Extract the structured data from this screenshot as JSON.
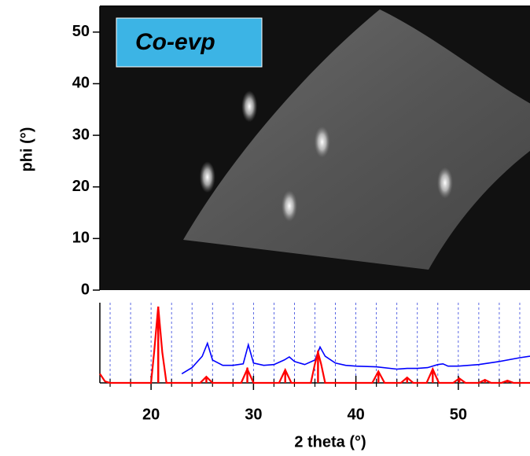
{
  "chart_data": [
    {
      "type": "scatter",
      "ylabel": "phi (°)",
      "annotation": "Co-evp",
      "xlim": [
        15,
        57
      ],
      "ylim": [
        0,
        55
      ],
      "yticks": [
        0,
        10,
        20,
        30,
        40,
        50
      ],
      "x": [
        25.5,
        29.6,
        36.7,
        33.5,
        48.7
      ],
      "values": [
        21.9,
        35.6,
        28.7,
        16.3,
        20.8
      ],
      "color": "#ffffff"
    },
    {
      "type": "line",
      "xlabel": "2 theta (°)",
      "xlim": [
        15,
        57
      ],
      "xticks": [
        20,
        30,
        40,
        50
      ],
      "xminor_ticks": [
        16,
        18,
        22,
        24,
        26,
        28,
        32,
        34,
        36,
        38,
        42,
        44,
        46,
        48,
        52,
        54,
        56
      ],
      "ylim": [
        0,
        100
      ],
      "grid": true,
      "series": [
        {
          "color": "#0000ff",
          "x": [
            23,
            24,
            25,
            25.5,
            26,
            27,
            28,
            29,
            29.5,
            30,
            31,
            32,
            33,
            33.5,
            34,
            35,
            36,
            36.5,
            37,
            38,
            39,
            40,
            42,
            44,
            45,
            46,
            47,
            48,
            48.5,
            49,
            50,
            52,
            54,
            56,
            57
          ],
          "values": [
            12,
            20,
            35,
            52,
            30,
            23,
            23,
            25,
            50,
            26,
            23,
            24,
            30,
            34,
            28,
            24,
            30,
            47,
            35,
            26,
            23,
            22,
            21,
            18,
            19,
            19,
            20,
            24,
            25,
            22,
            22,
            24,
            28,
            33,
            35
          ]
        },
        {
          "color": "#ff0000",
          "x": [
            15,
            15.5,
            16,
            20,
            20.3,
            20.7,
            21.1,
            21.5,
            24.8,
            25.4,
            26,
            28.8,
            29.4,
            30,
            32.5,
            33.1,
            33.7,
            35.6,
            36,
            36.3,
            36.6,
            37,
            41.6,
            42.2,
            42.8,
            44.4,
            45,
            45.6,
            46.9,
            47.5,
            48.1,
            49.5,
            50.1,
            50.7,
            52,
            52.6,
            53.2,
            54.2,
            54.8,
            55.4,
            57
          ],
          "values": [
            12,
            2,
            0,
            0,
            40,
            100,
            40,
            0,
            0,
            8,
            0,
            0,
            18,
            0,
            0,
            17,
            0,
            0,
            25,
            40,
            25,
            0,
            0,
            15,
            0,
            0,
            7,
            0,
            0,
            18,
            0,
            0,
            6,
            0,
            0,
            4,
            0,
            0,
            3,
            0,
            0
          ]
        }
      ],
      "sticks": {
        "color": "#ff0000",
        "x": [
          20.7,
          25.4,
          29.4,
          33.1,
          36.3,
          42.2,
          45,
          47.5,
          50.1,
          52.6,
          54.8
        ],
        "values": [
          100,
          8,
          20,
          17,
          42,
          15,
          6,
          18,
          5,
          3,
          2
        ]
      }
    }
  ]
}
